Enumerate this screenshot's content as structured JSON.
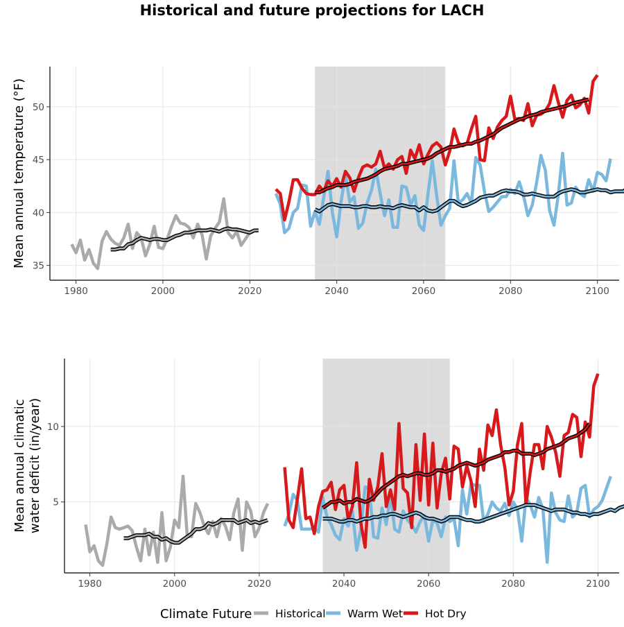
{
  "title": "Historical and future projections for LACH",
  "colors": {
    "historical": "#aaaaaa",
    "warm_wet": "#7ab8de",
    "hot_dry": "#d7191c",
    "smooth_outline": "#000000",
    "shade": "#dcdcdc",
    "grid": "#e4e4e4"
  },
  "legend": {
    "title": "Climate Future",
    "items": [
      {
        "key": "historical",
        "label": "Historical"
      },
      {
        "key": "warm_wet",
        "label": "Warm Wet"
      },
      {
        "key": "hot_dry",
        "label": "Hot Dry"
      }
    ]
  },
  "chart_data": [
    {
      "type": "line",
      "ylabel": "Mean annual temperature (°F)",
      "xlim": [
        1974,
        2105
      ],
      "ylim": [
        33.6,
        53.8
      ],
      "xticks": [
        1980,
        2000,
        2020,
        2040,
        2060,
        2080,
        2100
      ],
      "yticks": [
        35,
        40,
        45,
        50
      ],
      "grid": true,
      "shaded_period": [
        2035,
        2065
      ],
      "series": [
        {
          "name": "Historical",
          "key": "historical",
          "kind": "annual",
          "x0": 1979,
          "values": [
            37.0,
            36.2,
            37.4,
            35.5,
            36.5,
            35.2,
            34.7,
            37.3,
            38.2,
            37.5,
            37.1,
            36.9,
            37.6,
            38.9,
            36.6,
            38.1,
            37.6,
            35.9,
            37.0,
            38.7,
            36.7,
            36.6,
            37.5,
            38.7,
            39.7,
            39.0,
            38.9,
            38.6,
            37.6,
            38.9,
            37.9,
            35.6,
            37.8,
            38.5,
            39.1,
            41.3,
            38.1,
            37.6,
            38.2,
            36.9,
            37.5,
            38.1,
            38.3
          ]
        },
        {
          "name": "Historical",
          "key": "historical",
          "kind": "smooth",
          "x0": 1988,
          "values": [
            36.5,
            36.5,
            36.6,
            36.6,
            37.0,
            37.1,
            37.4,
            37.6,
            37.5,
            37.4,
            37.5,
            37.5,
            37.4,
            37.4,
            37.6,
            37.8,
            37.9,
            38.1,
            38.1,
            38.2,
            38.3,
            38.3,
            38.3,
            38.4,
            38.3,
            38.2,
            38.4,
            38.5,
            38.4,
            38.4,
            38.3,
            38.2,
            38.1,
            38.3,
            38.3
          ]
        },
        {
          "name": "Warm Wet",
          "key": "warm_wet",
          "kind": "annual",
          "x0": 2026,
          "values": [
            41.8,
            40.8,
            38.1,
            38.5,
            40.0,
            40.4,
            42.6,
            42.5,
            38.7,
            40.1,
            38.9,
            41.4,
            43.9,
            40.0,
            37.7,
            41.0,
            43.6,
            41.0,
            41.5,
            38.5,
            39.0,
            40.9,
            42.1,
            44.1,
            41.8,
            39.7,
            41.2,
            38.6,
            38.6,
            42.5,
            42.4,
            40.7,
            41.6,
            38.8,
            38.3,
            41.7,
            44.9,
            41.6,
            38.8,
            39.7,
            40.4,
            44.9,
            40.9,
            41.2,
            41.8,
            40.9,
            45.2,
            44.5,
            42.0,
            40.1,
            40.5,
            41.0,
            41.5,
            41.5,
            42.2,
            41.8,
            42.9,
            41.6,
            39.7,
            40.7,
            42.8,
            45.4,
            44.0,
            40.2,
            38.8,
            41.7,
            45.6,
            40.7,
            40.9,
            42.4,
            41.8,
            41.5,
            43.1,
            42.0,
            43.8,
            43.6,
            43.0,
            45.1
          ]
        },
        {
          "name": "Warm Wet",
          "key": "warm_wet",
          "kind": "smooth",
          "x0": 2035,
          "values": [
            40.3,
            40.1,
            40.4,
            40.7,
            40.8,
            40.7,
            40.6,
            40.6,
            40.6,
            40.5,
            40.5,
            40.6,
            40.6,
            40.5,
            40.5,
            40.6,
            40.5,
            40.5,
            40.4,
            40.6,
            40.7,
            40.6,
            40.5,
            40.5,
            40.2,
            40.5,
            40.2,
            40.1,
            40.2,
            40.5,
            40.8,
            41.1,
            41.1,
            40.8,
            40.6,
            40.7,
            40.9,
            41.1,
            41.4,
            41.5,
            41.6,
            41.6,
            41.8,
            42.0,
            42.1,
            42.0,
            42.0,
            41.9,
            41.7,
            41.7,
            41.8,
            41.7,
            41.6,
            41.5,
            41.5,
            41.5,
            41.8,
            42.0,
            42.1,
            42.2,
            42.1,
            41.9,
            41.9,
            42.0,
            42.1,
            42.2,
            42.1,
            42.1,
            41.9,
            42.0,
            42.0,
            42.0,
            42.4,
            42.6,
            42.6,
            42.5
          ]
        },
        {
          "name": "Hot Dry",
          "key": "hot_dry",
          "kind": "annual",
          "x0": 2026,
          "values": [
            42.2,
            41.8,
            39.3,
            41.0,
            43.1,
            43.1,
            42.3,
            41.8,
            41.7,
            41.7,
            42.5,
            42.0,
            43.0,
            42.5,
            43.2,
            42.4,
            43.9,
            43.3,
            42.0,
            43.3,
            44.3,
            44.5,
            44.3,
            44.6,
            45.8,
            44.2,
            44.6,
            44.1,
            45.0,
            45.3,
            43.7,
            45.9,
            45.1,
            46.4,
            44.6,
            45.5,
            46.3,
            46.6,
            46.2,
            44.5,
            45.8,
            47.9,
            46.6,
            46.3,
            46.5,
            47.9,
            49.1,
            45.0,
            44.9,
            48.0,
            47.0,
            48.1,
            48.7,
            49.1,
            51.0,
            48.8,
            48.9,
            48.7,
            50.3,
            48.2,
            49.2,
            49.3,
            49.6,
            50.3,
            52.0,
            50.4,
            49.0,
            50.6,
            51.1,
            49.9,
            50.2,
            50.8,
            49.4,
            52.4,
            53.0
          ]
        },
        {
          "name": "Hot Dry",
          "key": "hot_dry",
          "kind": "smooth",
          "x0": 2035,
          "values": [
            41.9,
            41.9,
            42.1,
            42.3,
            42.4,
            42.6,
            42.6,
            42.6,
            42.7,
            42.9,
            43.0,
            43.1,
            43.2,
            43.4,
            43.6,
            43.9,
            44.1,
            44.2,
            44.3,
            44.4,
            44.6,
            44.6,
            44.7,
            44.8,
            44.9,
            45.0,
            45.1,
            45.3,
            45.6,
            45.8,
            46.0,
            46.2,
            46.2,
            46.3,
            46.4,
            46.5,
            46.5,
            46.7,
            46.8,
            47.0,
            47.2,
            47.4,
            47.7,
            48.0,
            48.2,
            48.4,
            48.6,
            48.8,
            48.9,
            49.1,
            49.2,
            49.3,
            49.5,
            49.6,
            49.7,
            49.8,
            49.9,
            50.0,
            50.1,
            50.3,
            50.4,
            50.5,
            50.6,
            50.7
          ]
        }
      ]
    },
    {
      "type": "line",
      "ylabel": "Mean annual climatic water deficit (in/year)",
      "xlim": [
        1974,
        2105
      ],
      "ylim": [
        0.3,
        14.5
      ],
      "xticks": [
        1980,
        2000,
        2020,
        2040,
        2060,
        2080,
        2100
      ],
      "yticks": [
        5,
        10
      ],
      "grid": true,
      "shaded_period": [
        2035,
        2065
      ],
      "series": [
        {
          "name": "Historical",
          "key": "historical",
          "kind": "annual",
          "x0": 1979,
          "values": [
            3.5,
            1.7,
            2.1,
            1.1,
            0.8,
            2.2,
            4.0,
            3.3,
            3.2,
            3.3,
            3.4,
            3.1,
            2.0,
            1.1,
            3.2,
            1.5,
            3.0,
            1.0,
            4.3,
            1.1,
            2.0,
            3.8,
            3.3,
            6.7,
            2.7,
            2.7,
            4.9,
            4.3,
            3.4,
            2.9,
            3.7,
            2.7,
            3.9,
            3.4,
            2.5,
            4.3,
            5.2,
            1.8,
            5.0,
            4.4,
            2.7,
            3.3,
            4.3,
            4.9
          ]
        },
        {
          "name": "Historical",
          "key": "historical",
          "kind": "smooth",
          "x0": 1988,
          "values": [
            2.6,
            2.6,
            2.7,
            2.8,
            2.8,
            2.8,
            2.9,
            2.7,
            2.7,
            2.5,
            2.6,
            2.4,
            2.3,
            2.3,
            2.5,
            2.7,
            2.9,
            3.2,
            3.2,
            3.3,
            3.6,
            3.5,
            3.6,
            3.8,
            3.8,
            3.8,
            3.8,
            3.6,
            3.7,
            3.8,
            3.6,
            3.7,
            3.6,
            3.7,
            3.8
          ]
        },
        {
          "name": "Warm Wet",
          "key": "warm_wet",
          "kind": "annual",
          "x0": 2026,
          "values": [
            3.4,
            4.2,
            5.5,
            5.1,
            3.2,
            3.2,
            3.2,
            3.3,
            3.0,
            5.3,
            4.0,
            3.5,
            2.8,
            2.5,
            3.9,
            3.4,
            4.4,
            1.8,
            3.2,
            6.0,
            5.9,
            2.7,
            2.6,
            4.6,
            3.5,
            5.5,
            3.2,
            3.0,
            4.4,
            3.8,
            3.5,
            3.0,
            3.7,
            4.1,
            2.4,
            3.8,
            3.6,
            2.7,
            4.0,
            3.7,
            3.9,
            2.1,
            5.8,
            4.2,
            6.2,
            6.1,
            6.1,
            3.7,
            4.2,
            5.0,
            4.6,
            4.4,
            4.9,
            4.1,
            5.0,
            4.5,
            2.4,
            5.3,
            4.8,
            4.0,
            5.3,
            4.5,
            1.0,
            5.6,
            4.3,
            3.8,
            3.7,
            5.4,
            4.0,
            4.3,
            5.9,
            6.1,
            4.0,
            4.5,
            4.7,
            5.1,
            5.9,
            6.7
          ]
        },
        {
          "name": "Warm Wet",
          "key": "warm_wet",
          "kind": "smooth",
          "x0": 2035,
          "values": [
            3.9,
            3.9,
            3.9,
            3.8,
            3.7,
            3.7,
            3.8,
            3.8,
            3.7,
            3.8,
            3.9,
            3.9,
            4.0,
            4.0,
            4.1,
            4.1,
            4.2,
            4.2,
            4.1,
            4.0,
            4.1,
            4.2,
            4.3,
            4.2,
            4.0,
            3.9,
            3.9,
            3.8,
            3.7,
            3.8,
            4.0,
            4.0,
            4.0,
            3.9,
            3.8,
            3.8,
            3.7,
            3.7,
            3.8,
            3.9,
            4.0,
            4.1,
            4.2,
            4.3,
            4.4,
            4.5,
            4.6,
            4.7,
            4.8,
            4.8,
            4.8,
            4.7,
            4.6,
            4.5,
            4.4,
            4.5,
            4.5,
            4.5,
            4.4,
            4.3,
            4.3,
            4.2,
            4.2,
            4.1,
            4.2,
            4.2,
            4.3,
            4.4,
            4.5,
            4.4,
            4.6,
            4.7,
            4.8,
            5.0
          ]
        },
        {
          "name": "Hot Dry",
          "key": "hot_dry",
          "kind": "annual",
          "x0": 2026,
          "values": [
            7.3,
            3.8,
            3.3,
            5.2,
            7.2,
            3.9,
            4.0,
            2.9,
            4.7,
            5.7,
            5.8,
            6.3,
            4.5,
            5.8,
            6.1,
            3.8,
            4.7,
            7.6,
            3.6,
            2.0,
            6.5,
            5.1,
            6.0,
            8.2,
            4.7,
            5.8,
            4.5,
            10.2,
            5.9,
            5.6,
            3.3,
            8.8,
            5.1,
            9.5,
            4.8,
            8.9,
            4.6,
            6.9,
            7.9,
            5.2,
            8.7,
            8.5,
            6.0,
            7.4,
            6.4,
            4.7,
            8.5,
            7.1,
            10.1,
            9.4,
            11.1,
            8.8,
            7.3,
            4.8,
            5.7,
            8.8,
            10.2,
            4.8,
            7.0,
            8.8,
            8.8,
            7.2,
            10.0,
            9.3,
            8.3,
            6.7,
            9.4,
            9.6,
            10.8,
            10.6,
            8.0,
            10.3,
            9.3,
            12.7,
            13.5
          ]
        },
        {
          "name": "Hot Dry",
          "key": "hot_dry",
          "kind": "smooth",
          "x0": 2035,
          "values": [
            4.6,
            4.8,
            5.0,
            5.0,
            5.1,
            4.9,
            5.0,
            5.0,
            5.2,
            5.1,
            5.0,
            5.1,
            5.3,
            5.6,
            5.9,
            6.1,
            6.3,
            6.5,
            6.7,
            6.8,
            6.7,
            6.8,
            6.9,
            6.9,
            6.8,
            6.8,
            6.9,
            7.1,
            7.1,
            7.0,
            7.1,
            7.2,
            7.4,
            7.5,
            7.6,
            7.5,
            7.4,
            7.5,
            7.6,
            7.8,
            7.9,
            8.0,
            8.1,
            8.3,
            8.3,
            8.4,
            8.4,
            8.2,
            8.2,
            8.2,
            8.1,
            8.2,
            8.3,
            8.5,
            8.6,
            8.7,
            8.8,
            9.0,
            9.2,
            9.3,
            9.4,
            9.6,
            9.8,
            10.2
          ]
        }
      ]
    }
  ]
}
